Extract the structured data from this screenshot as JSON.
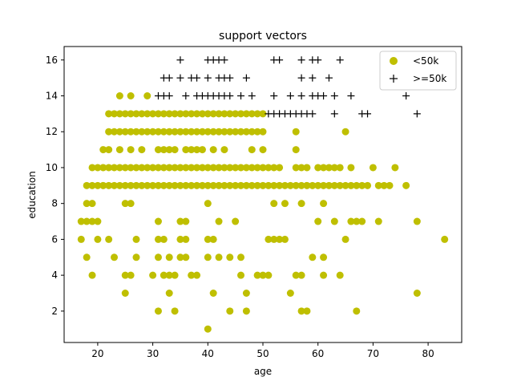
{
  "chart_data": {
    "type": "scatter",
    "title": "support vectors",
    "xlabel": "age",
    "ylabel": "education",
    "xlim": [
      13.9,
      86.1
    ],
    "ylim": [
      0.25,
      16.75
    ],
    "xticks": [
      20,
      30,
      40,
      50,
      60,
      70,
      80
    ],
    "yticks": [
      2,
      4,
      6,
      8,
      10,
      12,
      14,
      16
    ],
    "grid": false,
    "legend_position": "top-right",
    "series": [
      {
        "name": "<50k",
        "marker": "circle",
        "color": "#bfbf00",
        "points": [
          [
            17,
            7
          ],
          [
            17,
            6
          ],
          [
            18,
            9
          ],
          [
            18,
            7
          ],
          [
            18,
            8
          ],
          [
            18,
            5
          ],
          [
            19,
            10
          ],
          [
            19,
            9
          ],
          [
            19,
            8
          ],
          [
            19,
            7
          ],
          [
            19,
            4
          ],
          [
            20,
            10
          ],
          [
            20,
            9
          ],
          [
            20,
            7
          ],
          [
            20,
            6
          ],
          [
            21,
            10
          ],
          [
            21,
            9
          ],
          [
            21,
            11
          ],
          [
            22,
            10
          ],
          [
            22,
            9
          ],
          [
            22,
            12
          ],
          [
            22,
            13
          ],
          [
            22,
            11
          ],
          [
            22,
            6
          ],
          [
            23,
            10
          ],
          [
            23,
            9
          ],
          [
            23,
            12
          ],
          [
            23,
            13
          ],
          [
            23,
            5
          ],
          [
            24,
            10
          ],
          [
            24,
            9
          ],
          [
            24,
            12
          ],
          [
            24,
            13
          ],
          [
            24,
            14
          ],
          [
            24,
            11
          ],
          [
            25,
            10
          ],
          [
            25,
            9
          ],
          [
            25,
            12
          ],
          [
            25,
            13
          ],
          [
            25,
            8
          ],
          [
            25,
            4
          ],
          [
            25,
            3
          ],
          [
            26,
            10
          ],
          [
            26,
            9
          ],
          [
            26,
            12
          ],
          [
            26,
            13
          ],
          [
            26,
            14
          ],
          [
            26,
            11
          ],
          [
            26,
            8
          ],
          [
            26,
            4
          ],
          [
            27,
            10
          ],
          [
            27,
            9
          ],
          [
            27,
            12
          ],
          [
            27,
            13
          ],
          [
            27,
            6
          ],
          [
            27,
            5
          ],
          [
            28,
            10
          ],
          [
            28,
            9
          ],
          [
            28,
            12
          ],
          [
            28,
            13
          ],
          [
            28,
            11
          ],
          [
            29,
            10
          ],
          [
            29,
            9
          ],
          [
            29,
            12
          ],
          [
            29,
            13
          ],
          [
            29,
            14
          ],
          [
            30,
            10
          ],
          [
            30,
            9
          ],
          [
            30,
            12
          ],
          [
            30,
            13
          ],
          [
            30,
            4
          ],
          [
            31,
            10
          ],
          [
            31,
            9
          ],
          [
            31,
            12
          ],
          [
            31,
            13
          ],
          [
            31,
            11
          ],
          [
            31,
            7
          ],
          [
            31,
            6
          ],
          [
            31,
            5
          ],
          [
            31,
            2
          ],
          [
            32,
            10
          ],
          [
            32,
            9
          ],
          [
            32,
            12
          ],
          [
            32,
            13
          ],
          [
            32,
            11
          ],
          [
            32,
            6
          ],
          [
            32,
            4
          ],
          [
            33,
            10
          ],
          [
            33,
            9
          ],
          [
            33,
            12
          ],
          [
            33,
            13
          ],
          [
            33,
            11
          ],
          [
            33,
            5
          ],
          [
            33,
            4
          ],
          [
            33,
            3
          ],
          [
            34,
            10
          ],
          [
            34,
            9
          ],
          [
            34,
            12
          ],
          [
            34,
            13
          ],
          [
            34,
            11
          ],
          [
            34,
            4
          ],
          [
            34,
            2
          ],
          [
            35,
            10
          ],
          [
            35,
            9
          ],
          [
            35,
            12
          ],
          [
            35,
            13
          ],
          [
            35,
            7
          ],
          [
            35,
            6
          ],
          [
            35,
            5
          ],
          [
            36,
            10
          ],
          [
            36,
            9
          ],
          [
            36,
            12
          ],
          [
            36,
            13
          ],
          [
            36,
            11
          ],
          [
            36,
            7
          ],
          [
            36,
            6
          ],
          [
            36,
            5
          ],
          [
            37,
            10
          ],
          [
            37,
            9
          ],
          [
            37,
            12
          ],
          [
            37,
            13
          ],
          [
            37,
            11
          ],
          [
            37,
            4
          ],
          [
            38,
            10
          ],
          [
            38,
            9
          ],
          [
            38,
            12
          ],
          [
            38,
            13
          ],
          [
            38,
            11
          ],
          [
            38,
            4
          ],
          [
            39,
            10
          ],
          [
            39,
            9
          ],
          [
            39,
            12
          ],
          [
            39,
            13
          ],
          [
            39,
            11
          ],
          [
            40,
            10
          ],
          [
            40,
            9
          ],
          [
            40,
            12
          ],
          [
            40,
            13
          ],
          [
            40,
            8
          ],
          [
            40,
            6
          ],
          [
            40,
            5
          ],
          [
            40,
            1
          ],
          [
            41,
            10
          ],
          [
            41,
            9
          ],
          [
            41,
            12
          ],
          [
            41,
            13
          ],
          [
            41,
            11
          ],
          [
            41,
            6
          ],
          [
            41,
            3
          ],
          [
            42,
            10
          ],
          [
            42,
            9
          ],
          [
            42,
            12
          ],
          [
            42,
            13
          ],
          [
            42,
            7
          ],
          [
            42,
            5
          ],
          [
            43,
            10
          ],
          [
            43,
            9
          ],
          [
            43,
            12
          ],
          [
            43,
            13
          ],
          [
            43,
            11
          ],
          [
            44,
            10
          ],
          [
            44,
            9
          ],
          [
            44,
            12
          ],
          [
            44,
            13
          ],
          [
            44,
            5
          ],
          [
            44,
            2
          ],
          [
            45,
            10
          ],
          [
            45,
            9
          ],
          [
            45,
            12
          ],
          [
            45,
            13
          ],
          [
            45,
            7
          ],
          [
            46,
            10
          ],
          [
            46,
            9
          ],
          [
            46,
            12
          ],
          [
            46,
            13
          ],
          [
            46,
            5
          ],
          [
            46,
            4
          ],
          [
            47,
            10
          ],
          [
            47,
            9
          ],
          [
            47,
            12
          ],
          [
            47,
            13
          ],
          [
            47,
            3
          ],
          [
            47,
            2
          ],
          [
            48,
            10
          ],
          [
            48,
            9
          ],
          [
            48,
            12
          ],
          [
            48,
            13
          ],
          [
            48,
            11
          ],
          [
            49,
            10
          ],
          [
            49,
            9
          ],
          [
            49,
            12
          ],
          [
            49,
            13
          ],
          [
            49,
            4
          ],
          [
            50,
            10
          ],
          [
            50,
            9
          ],
          [
            50,
            12
          ],
          [
            50,
            13
          ],
          [
            50,
            11
          ],
          [
            50,
            4
          ],
          [
            51,
            10
          ],
          [
            51,
            9
          ],
          [
            51,
            6
          ],
          [
            51,
            4
          ],
          [
            52,
            10
          ],
          [
            52,
            9
          ],
          [
            52,
            8
          ],
          [
            52,
            6
          ],
          [
            53,
            10
          ],
          [
            53,
            9
          ],
          [
            53,
            6
          ],
          [
            54,
            9
          ],
          [
            54,
            8
          ],
          [
            54,
            6
          ],
          [
            55,
            9
          ],
          [
            55,
            3
          ],
          [
            56,
            12
          ],
          [
            56,
            10
          ],
          [
            56,
            9
          ],
          [
            56,
            11
          ],
          [
            56,
            4
          ],
          [
            57,
            10
          ],
          [
            57,
            9
          ],
          [
            57,
            8
          ],
          [
            57,
            4
          ],
          [
            57,
            2
          ],
          [
            58,
            10
          ],
          [
            58,
            9
          ],
          [
            58,
            2
          ],
          [
            59,
            9
          ],
          [
            59,
            5
          ],
          [
            60,
            10
          ],
          [
            60,
            9
          ],
          [
            60,
            7
          ],
          [
            61,
            10
          ],
          [
            61,
            9
          ],
          [
            61,
            8
          ],
          [
            61,
            5
          ],
          [
            61,
            4
          ],
          [
            62,
            10
          ],
          [
            62,
            9
          ],
          [
            63,
            10
          ],
          [
            63,
            9
          ],
          [
            63,
            7
          ],
          [
            64,
            10
          ],
          [
            64,
            9
          ],
          [
            64,
            4
          ],
          [
            65,
            12
          ],
          [
            65,
            9
          ],
          [
            65,
            6
          ],
          [
            66,
            10
          ],
          [
            66,
            9
          ],
          [
            66,
            7
          ],
          [
            67,
            9
          ],
          [
            67,
            7
          ],
          [
            67,
            2
          ],
          [
            68,
            9
          ],
          [
            68,
            7
          ],
          [
            69,
            9
          ],
          [
            70,
            10
          ],
          [
            71,
            9
          ],
          [
            71,
            7
          ],
          [
            72,
            9
          ],
          [
            73,
            9
          ],
          [
            74,
            10
          ],
          [
            76,
            9
          ],
          [
            78,
            7
          ],
          [
            78,
            3
          ],
          [
            83,
            6
          ]
        ]
      },
      {
        "name": ">=50k",
        "marker": "plus",
        "color": "#000000",
        "points": [
          [
            35,
            16
          ],
          [
            40,
            16
          ],
          [
            41,
            16
          ],
          [
            42,
            16
          ],
          [
            43,
            16
          ],
          [
            52,
            16
          ],
          [
            53,
            16
          ],
          [
            57,
            16
          ],
          [
            59,
            16
          ],
          [
            60,
            16
          ],
          [
            64,
            16
          ],
          [
            32,
            15
          ],
          [
            33,
            15
          ],
          [
            35,
            15
          ],
          [
            37,
            15
          ],
          [
            38,
            15
          ],
          [
            40,
            15
          ],
          [
            42,
            15
          ],
          [
            43,
            15
          ],
          [
            44,
            15
          ],
          [
            47,
            15
          ],
          [
            57,
            15
          ],
          [
            59,
            15
          ],
          [
            62,
            15
          ],
          [
            31,
            14
          ],
          [
            32,
            14
          ],
          [
            33,
            14
          ],
          [
            36,
            14
          ],
          [
            38,
            14
          ],
          [
            39,
            14
          ],
          [
            40,
            14
          ],
          [
            41,
            14
          ],
          [
            42,
            14
          ],
          [
            43,
            14
          ],
          [
            44,
            14
          ],
          [
            46,
            14
          ],
          [
            48,
            14
          ],
          [
            52,
            14
          ],
          [
            55,
            14
          ],
          [
            57,
            14
          ],
          [
            59,
            14
          ],
          [
            60,
            14
          ],
          [
            61,
            14
          ],
          [
            63,
            14
          ],
          [
            66,
            14
          ],
          [
            76,
            14
          ],
          [
            51,
            13
          ],
          [
            52,
            13
          ],
          [
            53,
            13
          ],
          [
            54,
            13
          ],
          [
            55,
            13
          ],
          [
            56,
            13
          ],
          [
            57,
            13
          ],
          [
            58,
            13
          ],
          [
            59,
            13
          ],
          [
            63,
            13
          ],
          [
            68,
            13
          ],
          [
            69,
            13
          ],
          [
            78,
            13
          ]
        ]
      }
    ]
  }
}
